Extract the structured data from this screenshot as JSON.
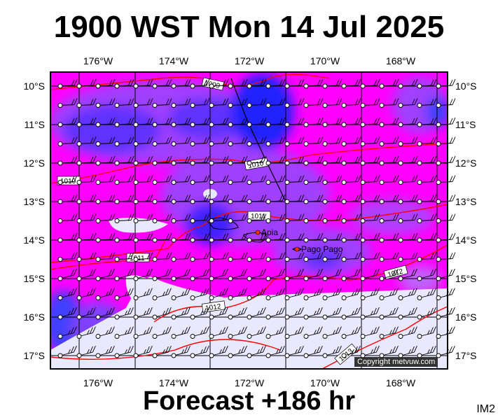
{
  "title": "1900 WST Mon 14 Jul 2025",
  "subtitle": "Forecast +186 hr",
  "tag": "IM2",
  "copyright": "Copyright metvuw.com",
  "lon_labels": [
    "176°W",
    "174°W",
    "172°W",
    "170°W",
    "168°W"
  ],
  "lat_labels": [
    "10°S",
    "11°S",
    "12°S",
    "13°S",
    "14°S",
    "15°S",
    "16°S",
    "17°S"
  ],
  "cities": [
    {
      "name": "Apia"
    },
    {
      "name": "Pago Pago"
    }
  ],
  "isobars": [
    "1009",
    "1010",
    "1010",
    "1011",
    "1011",
    "1012",
    "1012",
    "1013"
  ],
  "colors": {
    "magenta": "#ff00ff",
    "violet": "#b040ff",
    "purple": "#8040ff",
    "blue": "#2020ff",
    "pale": "#e8e8ff",
    "isobar": "#ff0000"
  }
}
